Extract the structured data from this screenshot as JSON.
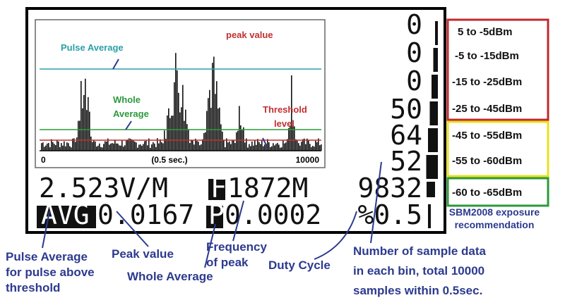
{
  "display": {
    "graph": {
      "pulse_average": "Pulse Average",
      "whole_average": [
        "Whole",
        "Average"
      ],
      "peak_value": "peak value",
      "threshold": [
        "Threshold",
        "level"
      ],
      "axis": [
        "0",
        "(0.5 sec.)",
        "10000"
      ]
    },
    "bin_counts": [
      "0",
      "0",
      "0",
      "50",
      "64",
      "52"
    ],
    "line1": [
      "2.523V/M",
      "F",
      "1872M",
      "9832"
    ],
    "line2": [
      "AVG",
      "0.0167",
      "P",
      "0.0002",
      "%0.5"
    ]
  },
  "legend": {
    "levels": [
      "5 to -5dBm",
      "-5 to -15dBm",
      "-15 to -25dBm",
      "-25 to -45dBm",
      "-45 to -55dBm",
      "-55 to -60dBm",
      "-60 to -65dBm"
    ],
    "note": [
      "SBM2008 exposure",
      "recommendation"
    ]
  },
  "annotations": {
    "pulse_average": [
      "Pulse Average",
      "for pulse above",
      "threshold"
    ],
    "peak_value": "Peak value",
    "frequency": [
      "Frequency",
      "of peak"
    ],
    "whole_average": "Whole Average",
    "duty_cycle": "Duty Cycle",
    "samples": [
      "Number of sample data",
      "in each bin, total 10000",
      "samples within 0.5sec."
    ]
  }
}
